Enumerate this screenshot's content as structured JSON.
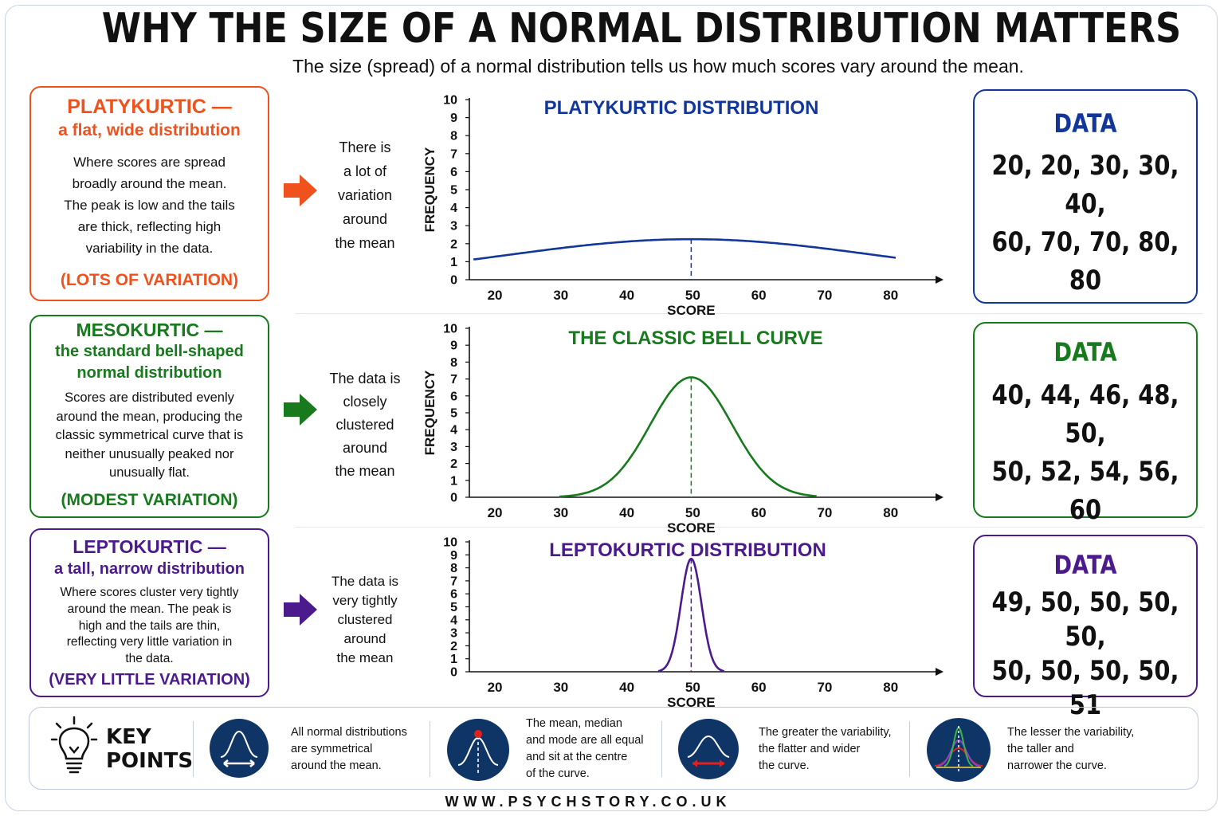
{
  "title": "WHY THE SIZE OF A NORMAL DISTRIBUTION MATTERS",
  "subtitle": "The size (spread) of a normal distribution tells us how much scores vary around the mean.",
  "rows": [
    {
      "key": "platy",
      "color": "#f0521e",
      "heading1": "PLATYKURTIC —",
      "heading2": "a flat, wide distribution",
      "body": [
        "Where scores are spread",
        "broadly around the mean.",
        "The peak is low and the tails",
        "are thick, reflecting high",
        "variability in the data."
      ],
      "footer": "(LOTS OF VARIATION)",
      "middle": [
        "There is",
        "a lot of",
        "variation",
        "around",
        "the mean"
      ],
      "data_heading": "DATA",
      "data_lines": [
        "20, 20, 30, 30, 40,",
        "60, 70, 70, 80, 80"
      ]
    },
    {
      "key": "meso",
      "color": "#177a1c",
      "heading1": "MESOKURTIC —",
      "heading2": "the standard bell-shaped",
      "heading3": "normal distribution",
      "body": [
        "Scores are distributed evenly",
        "around the mean, producing the",
        "classic symmetrical curve that is",
        "neither unusually peaked nor",
        "unusually flat."
      ],
      "footer": "(MODEST VARIATION)",
      "middle": [
        "The data is",
        "closely",
        "clustered",
        "around",
        "the mean"
      ],
      "data_heading": "DATA",
      "data_lines": [
        "40, 44, 46, 48, 50,",
        "50, 52, 54, 56, 60"
      ]
    },
    {
      "key": "lepto",
      "color": "#4b1a8c",
      "heading1": "LEPTOKURTIC —",
      "heading2": "a tall, narrow distribution",
      "body": [
        "Where scores cluster very tightly",
        "around the mean. The peak is",
        "high and the tails are thin,",
        "reflecting very little variation in",
        "the data."
      ],
      "footer": "(VERY LITTLE VARIATION)",
      "middle": [
        "The data is",
        "very tightly",
        "clustered",
        "around",
        "the mean"
      ],
      "data_heading": "DATA",
      "data_lines": [
        "49, 50, 50, 50, 50,",
        "50, 50, 50, 50, 51"
      ]
    }
  ],
  "chart_data": [
    {
      "type": "line",
      "title": "PLATYKURTIC DISTRIBUTION",
      "title_color": "#13369a",
      "xlabel": "SCORE",
      "ylabel": "FREQUENCY",
      "xticks": [
        20,
        30,
        40,
        50,
        60,
        70,
        80
      ],
      "yticks": [
        0,
        1,
        2,
        3,
        4,
        5,
        6,
        7,
        8,
        9,
        10
      ],
      "xlim": [
        17,
        81
      ],
      "ylim": [
        0,
        10
      ],
      "mean": 50,
      "peak": 2.25,
      "sigma": 28,
      "curve_range": [
        17,
        81
      ],
      "color": "#13369a"
    },
    {
      "type": "line",
      "title": "THE CLASSIC BELL CURVE",
      "title_color": "#177a1c",
      "xlabel": "SCORE",
      "ylabel": "FREQUENCY",
      "xticks": [
        20,
        30,
        40,
        50,
        60,
        70,
        80
      ],
      "yticks": [
        0,
        1,
        2,
        3,
        4,
        5,
        6,
        7,
        8,
        9,
        10
      ],
      "xlim": [
        17,
        81
      ],
      "ylim": [
        0,
        10
      ],
      "mean": 50,
      "peak": 7.1,
      "sigma": 6.2,
      "curve_range": [
        30,
        69
      ],
      "color": "#177a1c"
    },
    {
      "type": "line",
      "title": "LEPTOKURTIC DISTRIBUTION",
      "title_color": "#4b1a8c",
      "xlabel": "SCORE",
      "ylabel": "",
      "xticks": [
        20,
        30,
        40,
        50,
        60,
        70,
        80
      ],
      "yticks": [
        0,
        1,
        2,
        3,
        4,
        5,
        6,
        7,
        8,
        9,
        10
      ],
      "xlim": [
        17,
        81
      ],
      "ylim": [
        0,
        10
      ],
      "mean": 50,
      "peak": 8.7,
      "sigma": 1.55,
      "curve_range": [
        45,
        55
      ],
      "color": "#4b1a8c"
    }
  ],
  "key_points": {
    "heading1": "KEY",
    "heading2": "POINTS",
    "items": [
      {
        "icon": "symmetry-bell-icon",
        "lines": [
          "All normal distributions",
          "are symmetrical",
          "around the mean."
        ]
      },
      {
        "icon": "centre-peak-icon",
        "lines": [
          "The mean, median",
          "and mode are all equal",
          "and sit at the centre",
          "of the curve."
        ]
      },
      {
        "icon": "wide-flat-curve-icon",
        "lines": [
          "The greater the variability,",
          "the flatter and wider",
          "the curve."
        ]
      },
      {
        "icon": "tall-narrow-curve-icon",
        "lines": [
          "The lesser the variability,",
          "the taller and",
          "narrower the curve."
        ]
      }
    ]
  },
  "footer": "WWW.PSYCHSTORY.CO.UK"
}
